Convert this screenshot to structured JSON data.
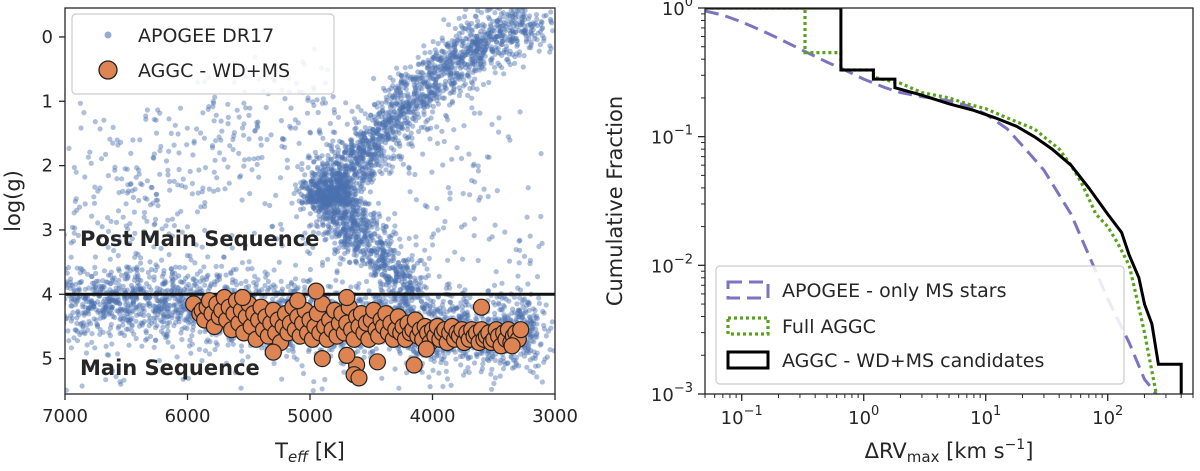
{
  "chart_data": [
    {
      "type": "scatter",
      "panel": "left",
      "xlabel_main": "T",
      "xlabel_sub": "eff",
      "xlabel_unit": " [K]",
      "ylabel": "log(g)",
      "xlim": [
        7000,
        3000
      ],
      "ylim": [
        5.55,
        -0.45
      ],
      "xticks": [
        7000,
        6000,
        5000,
        4000,
        3000
      ],
      "yticks": [
        0,
        1,
        2,
        3,
        4,
        5
      ],
      "hline": 4.0,
      "region_labels": {
        "upper": "Post Main Sequence",
        "lower": "Main Sequence"
      },
      "legend": [
        "APOGEE DR17",
        "AGGC - WD+MS"
      ],
      "colors": {
        "apogee": "#4c72b0",
        "aggc": "#dd8452"
      },
      "apogee_regions": {
        "giant_branch": [
          [
            4200,
            4.0
          ],
          [
            4400,
            3.4
          ],
          [
            4650,
            3.0
          ],
          [
            4800,
            2.6
          ],
          [
            4850,
            2.3
          ],
          [
            4650,
            2.0
          ],
          [
            4450,
            1.6
          ],
          [
            4250,
            1.1
          ],
          [
            4000,
            0.7
          ],
          [
            3750,
            0.3
          ],
          [
            3500,
            0.0
          ],
          [
            3150,
            -0.2
          ]
        ],
        "main_sequence_band": [
          [
            7000,
            4.15
          ],
          [
            6500,
            4.1
          ],
          [
            6000,
            4.15
          ],
          [
            5500,
            4.3
          ],
          [
            5000,
            4.4
          ],
          [
            4500,
            4.5
          ],
          [
            4000,
            4.55
          ],
          [
            3500,
            4.6
          ],
          [
            3150,
            4.6
          ]
        ],
        "red_clump": [
          [
            5000,
            2.35
          ],
          [
            4900,
            2.45
          ],
          [
            4800,
            2.5
          ],
          [
            4700,
            2.4
          ]
        ],
        "hot_sparse": [
          [
            7000,
            3.2
          ],
          [
            6500,
            2.8
          ],
          [
            6200,
            2.4
          ],
          [
            6000,
            2.0
          ],
          [
            5500,
            1.5
          ],
          [
            5200,
            1.2
          ],
          [
            5000,
            0.6
          ]
        ]
      },
      "aggc_points": [
        [
          5950,
          4.15
        ],
        [
          5900,
          4.3
        ],
        [
          5880,
          4.25
        ],
        [
          5860,
          4.4
        ],
        [
          5840,
          4.2
        ],
        [
          5820,
          4.1
        ],
        [
          5800,
          4.3
        ],
        [
          5780,
          4.5
        ],
        [
          5760,
          4.15
        ],
        [
          5740,
          4.35
        ],
        [
          5720,
          4.25
        ],
        [
          5700,
          4.05
        ],
        [
          5680,
          4.4
        ],
        [
          5660,
          4.2
        ],
        [
          5640,
          4.55
        ],
        [
          5620,
          4.3
        ],
        [
          5600,
          4.1
        ],
        [
          5580,
          4.45
        ],
        [
          5560,
          4.25
        ],
        [
          5540,
          4.6
        ],
        [
          5520,
          4.35
        ],
        [
          5500,
          4.15
        ],
        [
          5480,
          4.5
        ],
        [
          5460,
          4.3
        ],
        [
          5440,
          4.7
        ],
        [
          5420,
          4.4
        ],
        [
          5400,
          4.2
        ],
        [
          5380,
          4.55
        ],
        [
          5360,
          4.35
        ],
        [
          5340,
          4.65
        ],
        [
          5320,
          4.45
        ],
        [
          5300,
          4.25
        ],
        [
          5280,
          4.6
        ],
        [
          5260,
          4.4
        ],
        [
          5240,
          4.75
        ],
        [
          5220,
          4.5
        ],
        [
          5200,
          4.3
        ],
        [
          5180,
          4.6
        ],
        [
          5160,
          4.45
        ],
        [
          5140,
          4.2
        ],
        [
          5120,
          4.55
        ],
        [
          5100,
          4.35
        ],
        [
          5080,
          4.65
        ],
        [
          5060,
          4.45
        ],
        [
          5040,
          4.25
        ],
        [
          5020,
          4.6
        ],
        [
          5000,
          4.4
        ],
        [
          4980,
          4.7
        ],
        [
          4960,
          4.5
        ],
        [
          4940,
          4.3
        ],
        [
          4920,
          4.6
        ],
        [
          4900,
          4.15
        ],
        [
          4880,
          4.5
        ],
        [
          4860,
          4.7
        ],
        [
          4840,
          4.4
        ],
        [
          4820,
          4.55
        ],
        [
          4800,
          4.25
        ],
        [
          4780,
          4.65
        ],
        [
          4760,
          4.45
        ],
        [
          4740,
          4.3
        ],
        [
          4720,
          4.6
        ],
        [
          4700,
          4.45
        ],
        [
          4680,
          4.2
        ],
        [
          4660,
          4.55
        ],
        [
          4640,
          4.7
        ],
        [
          4620,
          4.35
        ],
        [
          4600,
          4.5
        ],
        [
          4580,
          4.3
        ],
        [
          4560,
          4.6
        ],
        [
          4540,
          4.45
        ],
        [
          4520,
          4.7
        ],
        [
          4500,
          4.4
        ],
        [
          4480,
          4.25
        ],
        [
          4460,
          4.55
        ],
        [
          4440,
          4.65
        ],
        [
          4420,
          4.4
        ],
        [
          4400,
          4.5
        ],
        [
          4380,
          4.3
        ],
        [
          4360,
          4.6
        ],
        [
          4340,
          4.45
        ],
        [
          4320,
          4.7
        ],
        [
          4300,
          4.55
        ],
        [
          4280,
          4.35
        ],
        [
          4260,
          4.6
        ],
        [
          4240,
          4.5
        ],
        [
          4220,
          4.7
        ],
        [
          4200,
          4.45
        ],
        [
          4180,
          4.6
        ],
        [
          4160,
          4.55
        ],
        [
          4140,
          4.4
        ],
        [
          4120,
          4.65
        ],
        [
          4100,
          4.55
        ],
        [
          4080,
          4.7
        ],
        [
          4060,
          4.5
        ],
        [
          4040,
          4.6
        ],
        [
          4020,
          4.75
        ],
        [
          4000,
          4.55
        ],
        [
          3980,
          4.65
        ],
        [
          3960,
          4.5
        ],
        [
          3940,
          4.7
        ],
        [
          3920,
          4.6
        ],
        [
          3900,
          4.55
        ],
        [
          3880,
          4.75
        ],
        [
          3860,
          4.6
        ],
        [
          3840,
          4.5
        ],
        [
          3820,
          4.7
        ],
        [
          3800,
          4.6
        ],
        [
          3780,
          4.65
        ],
        [
          3760,
          4.55
        ],
        [
          3740,
          4.75
        ],
        [
          3720,
          4.6
        ],
        [
          3700,
          4.7
        ],
        [
          3680,
          4.55
        ],
        [
          3660,
          4.65
        ],
        [
          3640,
          4.6
        ],
        [
          3620,
          4.75
        ],
        [
          3600,
          4.55
        ],
        [
          3580,
          4.7
        ],
        [
          3560,
          4.65
        ],
        [
          3540,
          4.6
        ],
        [
          3520,
          4.75
        ],
        [
          3500,
          4.7
        ],
        [
          3480,
          4.55
        ],
        [
          3460,
          4.65
        ],
        [
          3440,
          4.8
        ],
        [
          3420,
          4.6
        ],
        [
          3400,
          4.7
        ],
        [
          3380,
          4.55
        ],
        [
          3360,
          4.75
        ],
        [
          3340,
          4.65
        ],
        [
          3320,
          4.6
        ],
        [
          3300,
          4.7
        ],
        [
          3280,
          4.55
        ],
        [
          4950,
          3.95
        ],
        [
          4700,
          4.05
        ],
        [
          5100,
          4.1
        ],
        [
          5550,
          4.05
        ],
        [
          3600,
          4.2
        ],
        [
          4900,
          5.0
        ],
        [
          4450,
          5.05
        ],
        [
          4620,
          5.1
        ],
        [
          4640,
          5.25
        ],
        [
          4600,
          5.3
        ],
        [
          4150,
          5.1
        ],
        [
          4050,
          4.85
        ],
        [
          5300,
          4.9
        ],
        [
          4700,
          4.95
        ],
        [
          3350,
          4.8
        ]
      ]
    },
    {
      "type": "line",
      "panel": "right",
      "scale": "log-log",
      "xlabel_main": "ΔRV",
      "xlabel_sub": "max",
      "xlabel_unit": " [km s",
      "xlabel_sup": "−1",
      "xlabel_close": "]",
      "ylabel": "Cumulative Fraction",
      "xlim": [
        0.05,
        500
      ],
      "ylim": [
        0.001,
        1
      ],
      "xticks": [
        {
          "v": 0.1,
          "b": "10",
          "e": "−1"
        },
        {
          "v": 1,
          "b": "10",
          "e": "0"
        },
        {
          "v": 10,
          "b": "10",
          "e": "1"
        },
        {
          "v": 100,
          "b": "10",
          "e": "2"
        }
      ],
      "yticks": [
        {
          "v": 1,
          "b": "10",
          "e": "0"
        },
        {
          "v": 0.1,
          "b": "10",
          "e": "−1"
        },
        {
          "v": 0.01,
          "b": "10",
          "e": "−2"
        },
        {
          "v": 0.001,
          "b": "10",
          "e": "−3"
        }
      ],
      "legend": [
        "APOGEE - only MS stars",
        "Full AGGC",
        "AGGC - WD+MS candidates"
      ],
      "series": [
        {
          "name": "APOGEE - only MS stars",
          "style": "dashed",
          "color": "#7b74c0",
          "x": [
            0.05,
            0.07,
            0.1,
            0.15,
            0.2,
            0.3,
            0.5,
            0.7,
            1,
            1.5,
            2,
            3,
            5,
            7,
            10,
            15,
            20,
            30,
            50,
            70,
            100,
            150,
            200,
            250
          ],
          "y": [
            0.95,
            0.88,
            0.78,
            0.66,
            0.58,
            0.48,
            0.38,
            0.33,
            0.28,
            0.24,
            0.22,
            0.205,
            0.19,
            0.175,
            0.15,
            0.115,
            0.085,
            0.055,
            0.025,
            0.012,
            0.0055,
            0.0025,
            0.0013,
            0.001
          ]
        },
        {
          "name": "Full AGGC",
          "style": "dotted",
          "color": "#59a31a",
          "x": [
            0.05,
            0.33,
            0.33,
            0.65,
            0.65,
            1.2,
            1.2,
            2,
            3,
            5,
            7,
            10,
            15,
            20,
            25,
            30,
            40,
            50,
            60,
            70,
            80,
            100,
            120,
            150,
            170,
            200,
            230,
            250
          ],
          "y": [
            1,
            1,
            0.45,
            0.45,
            0.33,
            0.33,
            0.29,
            0.26,
            0.22,
            0.2,
            0.18,
            0.165,
            0.14,
            0.125,
            0.115,
            0.1,
            0.08,
            0.06,
            0.045,
            0.033,
            0.025,
            0.02,
            0.015,
            0.01,
            0.006,
            0.003,
            0.0015,
            0.001
          ]
        },
        {
          "name": "AGGC - WD+MS candidates",
          "style": "step",
          "color": "#000000",
          "x": [
            0.05,
            0.65,
            0.65,
            1.2,
            1.2,
            1.8,
            1.8,
            3,
            5,
            8,
            12,
            18,
            25,
            35,
            50,
            70,
            100,
            130,
            150,
            180,
            200,
            230,
            260,
            260,
            400,
            400
          ],
          "y": [
            1,
            1,
            0.33,
            0.33,
            0.28,
            0.28,
            0.24,
            0.21,
            0.18,
            0.16,
            0.14,
            0.12,
            0.1,
            0.08,
            0.06,
            0.04,
            0.025,
            0.018,
            0.012,
            0.008,
            0.005,
            0.0035,
            0.0017,
            0.0017,
            0.0017,
            0.001
          ]
        }
      ]
    }
  ]
}
